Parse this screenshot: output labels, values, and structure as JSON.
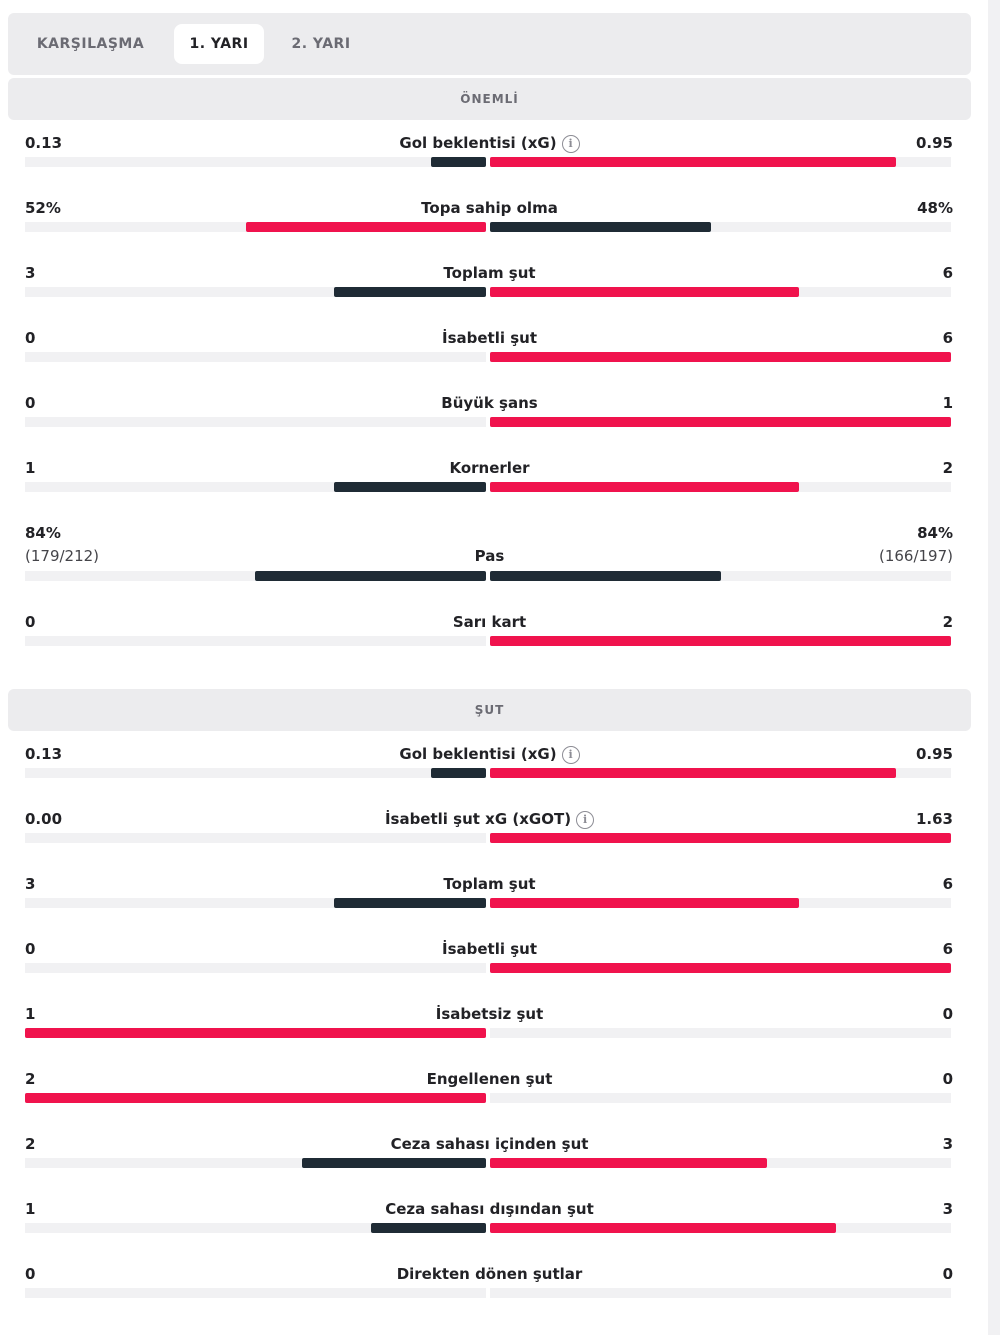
{
  "tabs": [
    {
      "label": "KARŞILAŞMA",
      "active": false
    },
    {
      "label": "1. YARI",
      "active": true
    },
    {
      "label": "2. YARI",
      "active": false
    }
  ],
  "colors": {
    "dark": "#1f2b35",
    "red": "#f0134d",
    "track": "#f1f1f3"
  },
  "sections": [
    {
      "title": "ÖNEMLİ",
      "rows": [
        {
          "label": "Gol beklentisi (xG)",
          "info": true,
          "home": "0.13",
          "away": "0.95",
          "home_fill": 0.12,
          "away_fill": 0.88,
          "home_color": "dark",
          "away_color": "red"
        },
        {
          "label": "Topa sahip olma",
          "info": false,
          "home": "52%",
          "away": "48%",
          "home_fill": 0.52,
          "away_fill": 0.48,
          "home_color": "red",
          "away_color": "dark"
        },
        {
          "label": "Toplam şut",
          "info": false,
          "home": "3",
          "away": "6",
          "home_fill": 0.33,
          "away_fill": 0.67,
          "home_color": "dark",
          "away_color": "red"
        },
        {
          "label": "İsabetli şut",
          "info": false,
          "home": "0",
          "away": "6",
          "home_fill": 0.0,
          "away_fill": 1.0,
          "home_color": "dark",
          "away_color": "red"
        },
        {
          "label": "Büyük şans",
          "info": false,
          "home": "0",
          "away": "1",
          "home_fill": 0.0,
          "away_fill": 1.0,
          "home_color": "dark",
          "away_color": "red"
        },
        {
          "label": "Kornerler",
          "info": false,
          "home": "1",
          "away": "2",
          "home_fill": 0.33,
          "away_fill": 0.67,
          "home_color": "dark",
          "away_color": "red"
        },
        {
          "label": "Pas",
          "info": false,
          "home": "84%",
          "away": "84%",
          "home_sub": "(179/212)",
          "away_sub": "(166/197)",
          "home_fill": 0.5,
          "away_fill": 0.5,
          "home_color": "dark",
          "away_color": "dark"
        },
        {
          "label": "Sarı kart",
          "info": false,
          "home": "0",
          "away": "2",
          "home_fill": 0.0,
          "away_fill": 1.0,
          "home_color": "dark",
          "away_color": "red"
        }
      ]
    },
    {
      "title": "ŞUT",
      "rows": [
        {
          "label": "Gol beklentisi (xG)",
          "info": true,
          "home": "0.13",
          "away": "0.95",
          "home_fill": 0.12,
          "away_fill": 0.88,
          "home_color": "dark",
          "away_color": "red"
        },
        {
          "label": "İsabetli şut xG (xGOT)",
          "info": true,
          "home": "0.00",
          "away": "1.63",
          "home_fill": 0.0,
          "away_fill": 1.0,
          "home_color": "dark",
          "away_color": "red"
        },
        {
          "label": "Toplam şut",
          "info": false,
          "home": "3",
          "away": "6",
          "home_fill": 0.33,
          "away_fill": 0.67,
          "home_color": "dark",
          "away_color": "red"
        },
        {
          "label": "İsabetli şut",
          "info": false,
          "home": "0",
          "away": "6",
          "home_fill": 0.0,
          "away_fill": 1.0,
          "home_color": "dark",
          "away_color": "red"
        },
        {
          "label": "İsabetsiz şut",
          "info": false,
          "home": "1",
          "away": "0",
          "home_fill": 1.0,
          "away_fill": 0.0,
          "home_color": "red",
          "away_color": "dark"
        },
        {
          "label": "Engellenen şut",
          "info": false,
          "home": "2",
          "away": "0",
          "home_fill": 1.0,
          "away_fill": 0.0,
          "home_color": "red",
          "away_color": "dark"
        },
        {
          "label": "Ceza sahası içinden şut",
          "info": false,
          "home": "2",
          "away": "3",
          "home_fill": 0.4,
          "away_fill": 0.6,
          "home_color": "dark",
          "away_color": "red"
        },
        {
          "label": "Ceza sahası dışından şut",
          "info": false,
          "home": "1",
          "away": "3",
          "home_fill": 0.25,
          "away_fill": 0.75,
          "home_color": "dark",
          "away_color": "red"
        },
        {
          "label": "Direkten dönen şutlar",
          "info": false,
          "home": "0",
          "away": "0",
          "home_fill": 0.0,
          "away_fill": 0.0,
          "home_color": "dark",
          "away_color": "red"
        }
      ]
    }
  ],
  "info_glyph": "i"
}
